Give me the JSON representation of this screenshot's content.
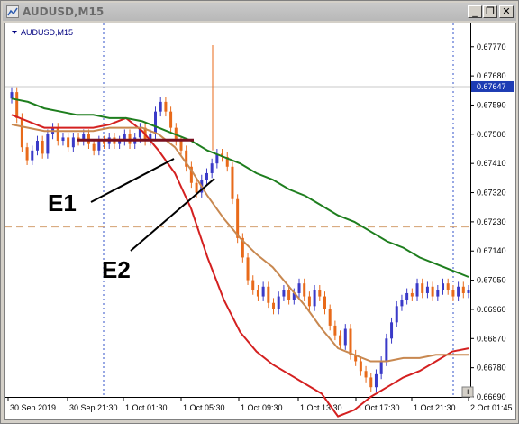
{
  "window": {
    "title": "AUDUSD,M15",
    "minimize_label": "_",
    "restore_label": "❐",
    "close_label": "✕"
  },
  "chart_label": "AUDUSD,M15",
  "current_price": "0.67647",
  "scroll_button": "+",
  "annotations": [
    "E1",
    "E2"
  ],
  "colors": {
    "ma_fast": "#d42020",
    "ma_mid": "#c88850",
    "ma_slow": "#1e7e1e",
    "bull_candle": "#3a3ac8",
    "bear_candle": "#e86a1a",
    "price_tag_bg": "#1e3cb4",
    "level_line": "#d4a070",
    "zone_line": "#7a1020",
    "annotation_line": "#000000"
  },
  "chart_data": {
    "type": "line",
    "title": "AUDUSD,M15",
    "ylim": [
      0.6669,
      0.67825
    ],
    "y_ticks": [
      "0.67770",
      "0.67680",
      "0.67590",
      "0.67500",
      "0.67410",
      "0.67320",
      "0.67230",
      "0.67140",
      "0.67050",
      "0.66960",
      "0.66870",
      "0.66780",
      "0.66690"
    ],
    "x_ticks": [
      "30 Sep 2019",
      "30 Sep 21:30",
      "1 Oct 01:30",
      "1 Oct 05:30",
      "1 Oct 09:30",
      "1 Oct 13:30",
      "1 Oct 17:30",
      "1 Oct 21:30",
      "2 Oct 01:45"
    ],
    "horizontal_level": 0.67214,
    "last_price": 0.67647,
    "series": [
      {
        "role": "ma_fast",
        "values": [
          0.6756,
          0.6754,
          0.6752,
          0.6752,
          0.6752,
          0.6752,
          0.6753,
          0.6755,
          0.6751,
          0.6745,
          0.6738,
          0.6727,
          0.6712,
          0.6699,
          0.6689,
          0.6683,
          0.6679,
          0.6676,
          0.6673,
          0.667,
          0.6663,
          0.6665,
          0.6669,
          0.6672,
          0.6675,
          0.6677,
          0.668,
          0.6683,
          0.6684
        ]
      },
      {
        "role": "ma_mid",
        "values": [
          0.6753,
          0.6752,
          0.6751,
          0.6751,
          0.6751,
          0.6751,
          0.6752,
          0.6752,
          0.6752,
          0.675,
          0.6746,
          0.6739,
          0.6731,
          0.6724,
          0.6718,
          0.6713,
          0.6709,
          0.6703,
          0.6697,
          0.669,
          0.6684,
          0.6682,
          0.668,
          0.668,
          0.6681,
          0.6681,
          0.6682,
          0.6682,
          0.6682
        ]
      },
      {
        "role": "ma_slow",
        "values": [
          0.6761,
          0.676,
          0.6758,
          0.6757,
          0.6756,
          0.6756,
          0.6755,
          0.6755,
          0.6754,
          0.6752,
          0.675,
          0.6748,
          0.6745,
          0.6743,
          0.6741,
          0.6738,
          0.6736,
          0.6733,
          0.6731,
          0.6728,
          0.6725,
          0.6723,
          0.672,
          0.6717,
          0.6715,
          0.6712,
          0.671,
          0.6708,
          0.6706
        ]
      }
    ],
    "zone_level": 0.67482,
    "grid": false,
    "legend": "none"
  }
}
